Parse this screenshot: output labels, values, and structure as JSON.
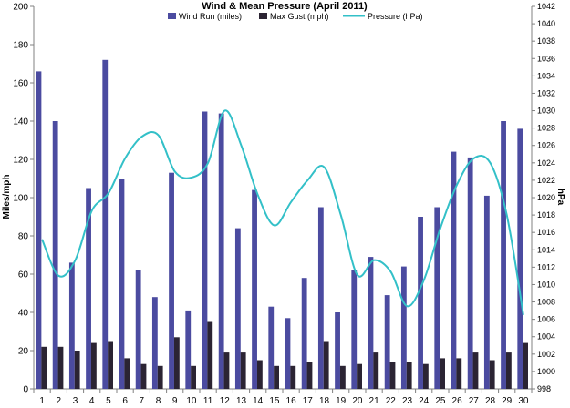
{
  "chart_data": {
    "type": "bar",
    "title": "Wind & Mean Pressure (April 2011)",
    "ylabel": "Miles/mph",
    "y2label": "hPa",
    "ylim": [
      0,
      200
    ],
    "y2lim": [
      998,
      1042
    ],
    "yticks": [
      0,
      20,
      40,
      60,
      80,
      100,
      120,
      140,
      160,
      180,
      200
    ],
    "y2ticks": [
      998,
      1000,
      1002,
      1004,
      1006,
      1008,
      1010,
      1012,
      1014,
      1016,
      1018,
      1020,
      1022,
      1024,
      1026,
      1028,
      1030,
      1032,
      1034,
      1036,
      1038,
      1040,
      1042
    ],
    "categories": [
      "1",
      "2",
      "3",
      "4",
      "5",
      "6",
      "7",
      "8",
      "9",
      "10",
      "11",
      "12",
      "13",
      "14",
      "15",
      "16",
      "17",
      "18",
      "19",
      "20",
      "21",
      "22",
      "23",
      "24",
      "25",
      "26",
      "27",
      "28",
      "29",
      "30"
    ],
    "legend_position": "top",
    "grid": false,
    "series": [
      {
        "name": "Wind Run (miles)",
        "type": "bar",
        "axis": "left",
        "color": "#4b4ba0",
        "values": [
          166,
          140,
          66,
          105,
          172,
          110,
          62,
          48,
          113,
          41,
          145,
          144,
          84,
          104,
          43,
          37,
          58,
          95,
          40,
          62,
          69,
          49,
          64,
          90,
          95,
          124,
          121,
          101,
          140,
          136
        ]
      },
      {
        "name": "Max Gust (mph)",
        "type": "bar",
        "axis": "left",
        "color": "#2b2433",
        "values": [
          22,
          22,
          20,
          24,
          25,
          16,
          13,
          12,
          27,
          12,
          35,
          19,
          19,
          15,
          12,
          12,
          14,
          25,
          12,
          13,
          19,
          14,
          14,
          13,
          16,
          16,
          19,
          15,
          19,
          24
        ]
      },
      {
        "name": "Pressure (hPa)",
        "type": "line",
        "axis": "right",
        "color": "#33c0c8",
        "values": [
          1015.2,
          1011.0,
          1012.8,
          1018.5,
          1020.5,
          1024.5,
          1027.0,
          1027.2,
          1023.0,
          1022.3,
          1024.0,
          1030.0,
          1026.0,
          1020.3,
          1016.8,
          1019.5,
          1022.0,
          1023.5,
          1018.0,
          1011.1,
          1012.8,
          1011.5,
          1007.5,
          1010.5,
          1016.5,
          1021.5,
          1024.5,
          1024.0,
          1018.0,
          1006.5
        ]
      }
    ]
  }
}
